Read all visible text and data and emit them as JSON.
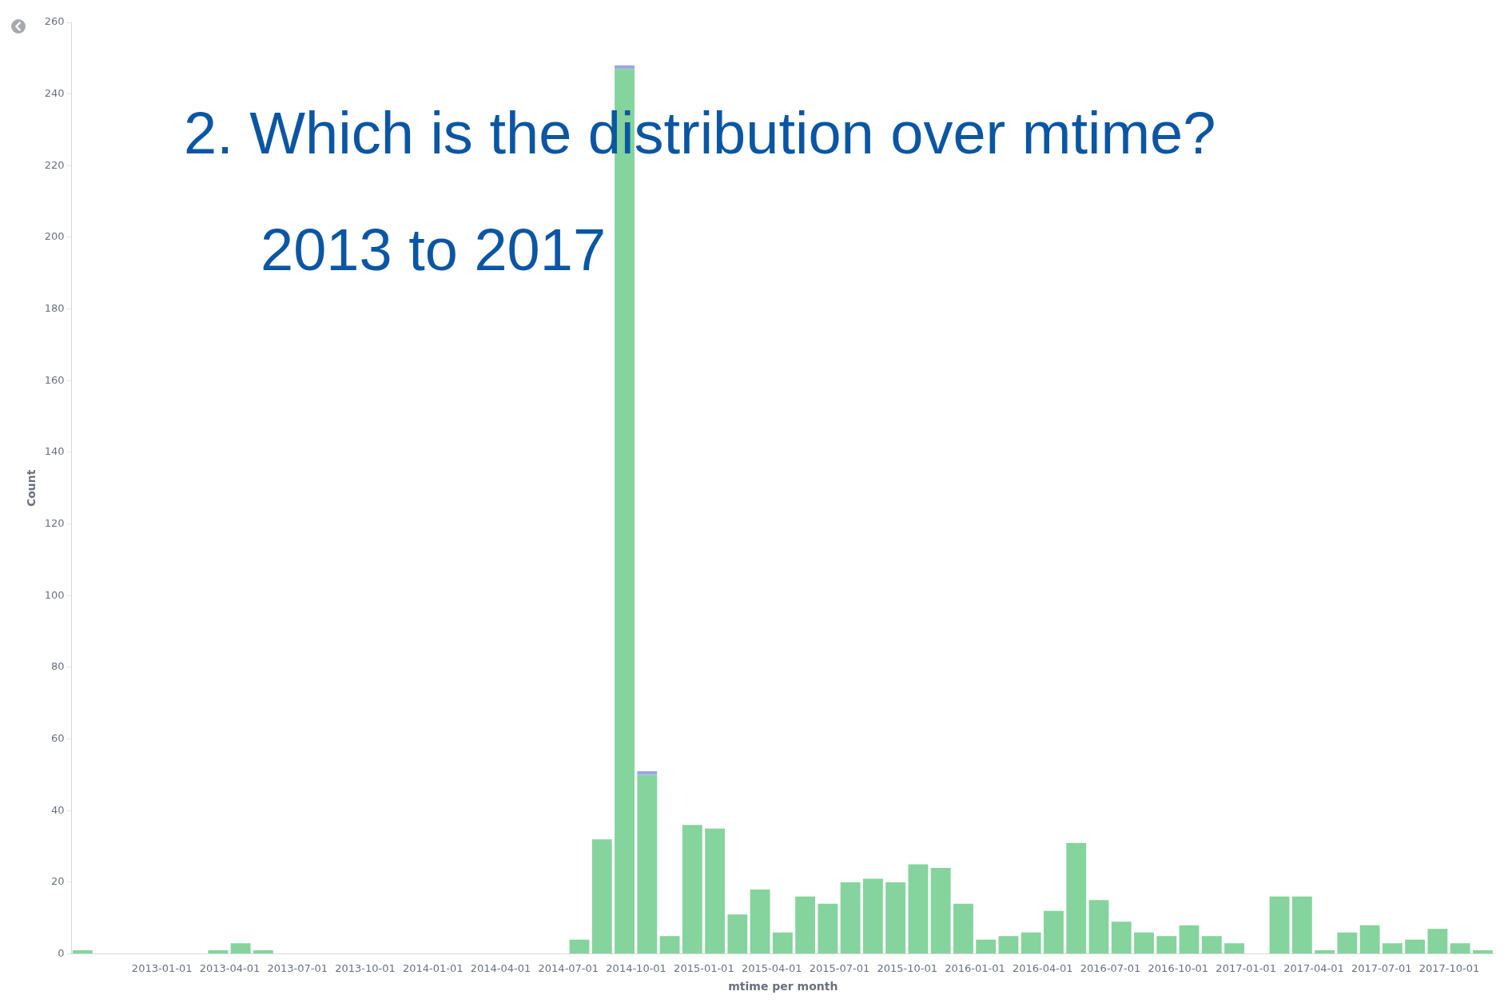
{
  "chart_data": {
    "type": "bar",
    "title": "2.  Which is the distribution over mtime?",
    "subtitle": "2013 to 2017",
    "xlabel": "mtime per month",
    "ylabel": "Count",
    "x": [
      "2012-09-16",
      "2012-10-16",
      "2012-11-16",
      "2012-12-16",
      "2013-01-16",
      "2013-02-16",
      "2013-03-16",
      "2013-04-16",
      "2013-05-16",
      "2013-06-16",
      "2013-07-16",
      "2013-08-16",
      "2013-09-16",
      "2013-10-16",
      "2013-11-16",
      "2013-12-16",
      "2014-01-16",
      "2014-02-16",
      "2014-03-16",
      "2014-04-16",
      "2014-05-16",
      "2014-06-16",
      "2014-07-16",
      "2014-08-16",
      "2014-09-16",
      "2014-10-16",
      "2014-11-16",
      "2014-12-16",
      "2015-01-16",
      "2015-02-16",
      "2015-03-16",
      "2015-04-16",
      "2015-05-16",
      "2015-06-16",
      "2015-07-16",
      "2015-08-16",
      "2015-09-16",
      "2015-10-16",
      "2015-11-16",
      "2015-12-16",
      "2016-01-16",
      "2016-02-16",
      "2016-03-16",
      "2016-04-16",
      "2016-05-16",
      "2016-06-16",
      "2016-07-16",
      "2016-08-16",
      "2016-09-16",
      "2016-10-16",
      "2016-11-16",
      "2016-12-16",
      "2017-01-16",
      "2017-02-16",
      "2017-03-16",
      "2017-04-16",
      "2017-05-16",
      "2017-06-16",
      "2017-07-16",
      "2017-08-16",
      "2017-09-16",
      "2017-10-16",
      "2017-11-16"
    ],
    "series": [
      {
        "color": "#85d39d",
        "values": [
          1,
          0,
          0,
          0,
          0,
          0,
          1,
          3,
          1,
          0,
          0,
          0,
          0,
          0,
          0,
          0,
          0,
          0,
          0,
          0,
          0,
          0,
          4,
          32,
          247,
          50,
          5,
          36,
          35,
          11,
          18,
          6,
          16,
          14,
          20,
          21,
          20,
          25,
          24,
          14,
          4,
          5,
          6,
          12,
          31,
          15,
          9,
          6,
          5,
          8,
          5,
          3,
          0,
          16,
          16,
          1,
          6,
          8,
          3,
          4,
          7,
          3,
          1
        ]
      },
      {
        "color": "#9aa5e6",
        "values": [
          0,
          0,
          0,
          0,
          0,
          0,
          0,
          0,
          0,
          0,
          0,
          0,
          0,
          0,
          0,
          0,
          0,
          0,
          0,
          0,
          0,
          0,
          0,
          0,
          1,
          1,
          0,
          0,
          0,
          0,
          0,
          0,
          0,
          0,
          0,
          0,
          0,
          0,
          0,
          0,
          0,
          0,
          0,
          0,
          0,
          0,
          0,
          0,
          0,
          0,
          0,
          0,
          0,
          0,
          0,
          0,
          0,
          0,
          0,
          0,
          0,
          0,
          0
        ]
      }
    ],
    "stacked": true,
    "xlim": [
      "2012-09",
      "2017-12"
    ],
    "xticks": [
      "2013-01-01",
      "2013-04-01",
      "2013-07-01",
      "2013-10-01",
      "2014-01-01",
      "2014-04-01",
      "2014-07-01",
      "2014-10-01",
      "2015-01-01",
      "2015-04-01",
      "2015-07-01",
      "2015-10-01",
      "2016-01-01",
      "2016-04-01",
      "2016-07-01",
      "2016-10-01",
      "2017-01-01",
      "2017-04-01",
      "2017-07-01",
      "2017-10-01"
    ],
    "ylim": [
      0,
      260
    ],
    "yticks": [
      0,
      20,
      40,
      60,
      80,
      100,
      120,
      140,
      160,
      180,
      200,
      220,
      240,
      260
    ],
    "grid": false,
    "legend": false
  }
}
